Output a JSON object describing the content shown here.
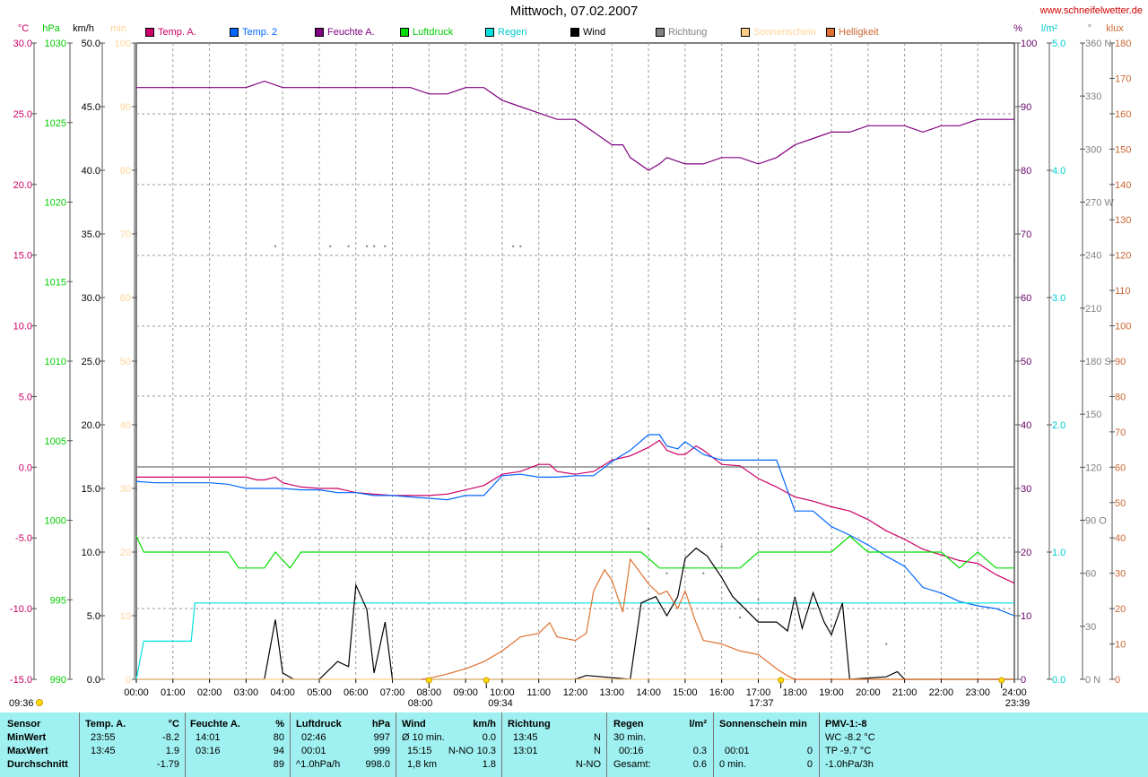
{
  "chart_data": {
    "type": "line",
    "title": "Mittwoch, 07.02.2007",
    "source": "www.schneifelwetter.de",
    "x_ticks": [
      "00:00",
      "01:00",
      "02:00",
      "03:00",
      "04:00",
      "05:00",
      "06:00",
      "07:00",
      "08:00",
      "09:00",
      "10:00",
      "11:00",
      "12:00",
      "13:00",
      "14:00",
      "15:00",
      "16:00",
      "17:00",
      "18:00",
      "19:00",
      "20:00",
      "21:00",
      "22:00",
      "23:00",
      "24:00"
    ],
    "sun_markers": {
      "sunrise": "08:00",
      "sunset": "17:37",
      "moonrise": "09:34",
      "moonset": "23:39",
      "prev_moon": "09:36"
    },
    "axes": [
      {
        "unit": "°C",
        "color": "#cc0066",
        "range": [
          -15,
          30
        ],
        "ticks": [
          "30.0",
          "25.0",
          "20.0",
          "15.0",
          "10.0",
          "5.0",
          "0.0",
          "-5.0",
          "-10.0",
          "-15.0"
        ]
      },
      {
        "unit": "hPa",
        "color": "#00cc00",
        "range": [
          990,
          1030
        ],
        "ticks": [
          "1030",
          "1025",
          "1020",
          "1015",
          "1010",
          "1005",
          "1000",
          "995",
          "990"
        ]
      },
      {
        "unit": "km/h",
        "color": "#000000",
        "range": [
          0,
          50
        ],
        "ticks": [
          "50.0",
          "45.0",
          "40.0",
          "35.0",
          "30.0",
          "25.0",
          "20.0",
          "15.0",
          "10.0",
          "5.0",
          "0.0"
        ]
      },
      {
        "unit": "min",
        "color": "#ffd49a",
        "range": [
          0,
          100
        ],
        "ticks": [
          "100",
          "90",
          "80",
          "70",
          "60",
          "50",
          "40",
          "30",
          "20",
          "10",
          "0"
        ]
      },
      {
        "unit": "%",
        "color": "#660066",
        "range": [
          0,
          100
        ],
        "ticks": [
          "100",
          "90",
          "80",
          "70",
          "60",
          "50",
          "40",
          "30",
          "20",
          "10",
          "0"
        ]
      },
      {
        "unit": "l/m²",
        "color": "#00cccc",
        "range": [
          0,
          5
        ],
        "ticks": [
          "5.0",
          "4.0",
          "3.0",
          "2.0",
          "1.0",
          "0.0"
        ]
      },
      {
        "unit": "°",
        "color": "#808080",
        "range": [
          0,
          360
        ],
        "ticks": [
          "360 N",
          "330",
          "300",
          "270 W",
          "240",
          "210",
          "180 S",
          "150",
          "120",
          "90 O",
          "60",
          "30",
          "0 N"
        ]
      },
      {
        "unit": "klux",
        "color": "#cc6633",
        "range": [
          0,
          180
        ],
        "ticks": [
          "180",
          "170",
          "160",
          "150",
          "140",
          "130",
          "120",
          "110",
          "100",
          "90",
          "80",
          "70",
          "60",
          "50",
          "40",
          "30",
          "20",
          "10",
          "0"
        ]
      }
    ],
    "series": [
      {
        "name": "Temp. A.",
        "color": "#cc0066",
        "axis": "°C",
        "x": [
          0,
          0.5,
          1,
          1.5,
          2,
          2.5,
          3,
          3.3,
          3.5,
          3.8,
          4,
          4.5,
          5,
          5.5,
          6,
          6.5,
          7,
          7.5,
          8,
          8.5,
          9,
          9.5,
          10,
          10.5,
          11,
          11.3,
          11.5,
          12,
          12.5,
          13,
          13.5,
          14,
          14.3,
          14.5,
          14.8,
          15,
          15.3,
          15.5,
          16,
          16.5,
          17,
          17.5,
          18,
          18.5,
          19,
          19.5,
          20,
          20.5,
          21,
          21.5,
          22,
          22.5,
          23,
          23.5,
          24
        ],
        "y": [
          -0.7,
          -0.7,
          -0.7,
          -0.7,
          -0.7,
          -0.7,
          -0.7,
          -0.9,
          -0.9,
          -0.7,
          -1.1,
          -1.4,
          -1.5,
          -1.5,
          -1.8,
          -1.9,
          -2.0,
          -2.0,
          -2.0,
          -1.9,
          -1.6,
          -1.3,
          -0.5,
          -0.3,
          0.2,
          0.2,
          -0.3,
          -0.5,
          -0.3,
          0.5,
          0.8,
          1.4,
          1.9,
          1.2,
          0.9,
          0.9,
          1.5,
          1.2,
          0.2,
          0.1,
          -0.8,
          -1.4,
          -2.1,
          -2.4,
          -2.8,
          -3.1,
          -3.7,
          -4.5,
          -5.1,
          -5.8,
          -6.2,
          -6.6,
          -6.8,
          -7.6,
          -8.2
        ]
      },
      {
        "name": "Temp. 2",
        "color": "#0066ff",
        "axis": "°C",
        "x": [
          0,
          0.5,
          1,
          1.5,
          2,
          2.5,
          3,
          3.5,
          4,
          4.5,
          5,
          5.5,
          6,
          6.5,
          7,
          7.5,
          8,
          8.5,
          9,
          9.5,
          10,
          10.5,
          11,
          11.5,
          12,
          12.5,
          13,
          13.5,
          14,
          14.3,
          14.5,
          14.8,
          15,
          15.5,
          16,
          16.5,
          17,
          17.5,
          18,
          18.5,
          19,
          19.5,
          20,
          20.5,
          21,
          21.5,
          22,
          22.5,
          23,
          23.5,
          24
        ],
        "y": [
          -1.0,
          -1.1,
          -1.1,
          -1.1,
          -1.1,
          -1.2,
          -1.5,
          -1.5,
          -1.5,
          -1.6,
          -1.6,
          -1.8,
          -1.8,
          -2.0,
          -2.0,
          -2.1,
          -2.2,
          -2.3,
          -2.0,
          -2.0,
          -0.6,
          -0.5,
          -0.7,
          -0.7,
          -0.6,
          -0.6,
          0.4,
          1.2,
          2.3,
          2.3,
          1.5,
          1.3,
          1.8,
          0.9,
          0.5,
          0.5,
          0.5,
          0.5,
          -3.1,
          -3.1,
          -4.2,
          -4.8,
          -5.5,
          -6.3,
          -7.0,
          -8.5,
          -8.9,
          -9.5,
          -9.8,
          -10.0,
          -10.5
        ]
      },
      {
        "name": "Feuchte A.",
        "color": "#800080",
        "axis": "%",
        "x": [
          0,
          0.5,
          1,
          1.5,
          2,
          2.5,
          3,
          3.5,
          4,
          4.5,
          5,
          5.5,
          6,
          6.5,
          7,
          7.5,
          8,
          8.5,
          9,
          9.5,
          10,
          10.5,
          11,
          11.5,
          12,
          12.5,
          13,
          13.3,
          13.5,
          14,
          14.3,
          14.5,
          15,
          15.5,
          16,
          16.5,
          17,
          17.5,
          18,
          18.5,
          19,
          19.5,
          20,
          20.5,
          21,
          21.5,
          22,
          22.5,
          23,
          23.5,
          24
        ],
        "y": [
          93,
          93,
          93,
          93,
          93,
          93,
          93,
          94,
          93,
          93,
          93,
          93,
          93,
          93,
          93,
          93,
          92,
          92,
          93,
          93,
          91,
          90,
          89,
          88,
          88,
          86,
          84,
          84,
          82,
          80,
          81,
          82,
          81,
          81,
          82,
          82,
          81,
          82,
          84,
          85,
          86,
          86,
          87,
          87,
          87,
          86,
          87,
          87,
          88,
          88,
          88
        ]
      },
      {
        "name": "Luftdruck",
        "color": "#00dd00",
        "axis": "hPa",
        "x": [
          0,
          0.2,
          2.5,
          2.8,
          3.5,
          3.8,
          4.2,
          4.5,
          5,
          7,
          8,
          9,
          10,
          11,
          12,
          13,
          13.8,
          14.3,
          16.5,
          17,
          17.5,
          18,
          18.5,
          19,
          19.5,
          20,
          20.5,
          21,
          21.5,
          22,
          22.5,
          23,
          23.5,
          24
        ],
        "y": [
          999,
          998,
          998,
          997,
          997,
          998,
          997,
          998,
          998,
          998,
          998,
          998,
          998,
          998,
          998,
          998,
          998,
          997,
          997,
          998,
          998,
          998,
          998,
          998,
          999,
          998,
          998,
          998,
          998,
          998,
          997,
          998,
          997,
          997
        ]
      },
      {
        "name": "Regen",
        "color": "#00e0e0",
        "axis": "l/m²",
        "x": [
          0,
          0.2,
          1.2,
          1.5,
          1.6,
          2,
          4,
          6,
          8,
          10,
          12,
          14,
          16,
          18,
          20,
          22,
          24
        ],
        "y": [
          0,
          0.3,
          0.3,
          0.3,
          0.6,
          0.6,
          0.6,
          0.6,
          0.6,
          0.6,
          0.6,
          0.6,
          0.6,
          0.6,
          0.6,
          0.6,
          0.6
        ]
      },
      {
        "name": "Wind",
        "color": "#000000",
        "axis": "km/h",
        "x": [
          0,
          3.5,
          3.8,
          4.0,
          4.3,
          5,
          5.5,
          5.8,
          6,
          6.3,
          6.5,
          6.8,
          7,
          7.2,
          7.5,
          8,
          12,
          12.3,
          13.5,
          13.8,
          14.2,
          14.5,
          14.8,
          15,
          15.3,
          15.6,
          16,
          16.3,
          17,
          17.5,
          17.8,
          18,
          18.2,
          18.5,
          18.8,
          19,
          19.3,
          19.5,
          20.5,
          20.8,
          21,
          24
        ],
        "y": [
          0,
          0,
          4.7,
          0.5,
          0,
          0,
          1.4,
          1.0,
          7.4,
          5.5,
          0.5,
          4.5,
          0,
          0,
          0,
          0,
          0,
          0.3,
          0,
          6.0,
          6.5,
          5.0,
          6.5,
          9.5,
          10.3,
          9.7,
          8.0,
          6.5,
          4.5,
          4.5,
          3.8,
          6.5,
          4.0,
          6.8,
          4.5,
          3.5,
          6.0,
          0,
          0.2,
          0.6,
          0,
          0
        ]
      },
      {
        "name": "Richtung",
        "color": "#808080",
        "axis": "°",
        "points": [
          [
            3.8,
            245
          ],
          [
            5.3,
            245
          ],
          [
            5.8,
            245
          ],
          [
            6.3,
            245
          ],
          [
            6.5,
            245
          ],
          [
            6.8,
            245
          ],
          [
            10.3,
            245
          ],
          [
            10.5,
            245
          ],
          [
            14.0,
            85
          ],
          [
            14.5,
            60
          ],
          [
            15.5,
            60
          ],
          [
            16.0,
            75
          ],
          [
            16.5,
            35
          ],
          [
            17.0,
            45
          ],
          [
            18.0,
            45
          ],
          [
            18.5,
            40
          ],
          [
            19.0,
            30
          ],
          [
            20.5,
            20
          ]
        ]
      },
      {
        "name": "Sonnenschein",
        "color": "#ffcc88",
        "axis": "min",
        "x": [
          0,
          24
        ],
        "y": [
          0,
          0
        ]
      },
      {
        "name": "Helligkeit",
        "color": "#e07030",
        "axis": "klux",
        "x": [
          7.8,
          8,
          8.5,
          9,
          9.5,
          10,
          10.5,
          11,
          11.3,
          11.5,
          12,
          12.3,
          12.5,
          12.8,
          13,
          13.3,
          13.5,
          14,
          14.3,
          14.5,
          14.8,
          15,
          15.3,
          15.5,
          16,
          16.5,
          17,
          17.5,
          17.8,
          18,
          24
        ],
        "y": [
          0,
          0.3,
          1.5,
          3,
          5,
          8,
          12,
          13,
          16,
          12,
          11,
          13,
          25,
          31,
          28,
          19,
          34,
          27,
          24,
          25,
          20,
          25,
          16,
          11,
          10,
          8,
          7,
          3,
          1,
          0,
          0
        ]
      }
    ]
  },
  "legend": [
    {
      "label": "Temp. A.",
      "color": "#cc0066",
      "text_color": "#cc0066"
    },
    {
      "label": "Temp. 2",
      "color": "#0066ff",
      "text_color": "#0066ff"
    },
    {
      "label": "Feuchte A.",
      "color": "#800080",
      "text_color": "#800080"
    },
    {
      "label": "Luftdruck",
      "color": "#00dd00",
      "text_color": "#00cc00"
    },
    {
      "label": "Regen",
      "color": "#00e0e0",
      "text_color": "#00cccc"
    },
    {
      "label": "Wind",
      "color": "#000000",
      "text_color": "#000000"
    },
    {
      "label": "Richtung",
      "color": "#808080",
      "text_color": "#808080"
    },
    {
      "label": "Sonnenschein",
      "color": "#ffcc88",
      "text_color": "#ffd49a"
    },
    {
      "label": "Helligkeit",
      "color": "#e07030",
      "text_color": "#cc6633"
    }
  ],
  "table": {
    "sensor": {
      "header": "Sensor",
      "rows": [
        "MinWert",
        "MaxWert",
        "Durchschnitt"
      ]
    },
    "temp": {
      "header": "Temp. A.",
      "unit": "°C",
      "rows": [
        [
          "23:55",
          "-8.2"
        ],
        [
          "13:45",
          "1.9"
        ],
        [
          "",
          "-1.79"
        ]
      ]
    },
    "humidity": {
      "header": "Feuchte A.",
      "unit": "%",
      "rows": [
        [
          "14:01",
          "80"
        ],
        [
          "03:16",
          "94"
        ],
        [
          "",
          "89"
        ]
      ]
    },
    "pressure": {
      "header": "Luftdruck",
      "unit": "hPa",
      "rows": [
        [
          "02:46",
          "997"
        ],
        [
          "00:01",
          "999"
        ],
        [
          "^1.0hPa/h",
          "998.0"
        ]
      ]
    },
    "wind": {
      "header": "Wind",
      "unit": "km/h",
      "rows": [
        [
          "Ø 10 min.",
          "",
          "0.0"
        ],
        [
          "15:15",
          "N-NO",
          "10.3"
        ],
        [
          "1,8 km",
          "",
          "1.8"
        ]
      ]
    },
    "direction": {
      "header": "Richtung",
      "rows": [
        [
          "13:45",
          "N"
        ],
        [
          "13:01",
          "N"
        ],
        [
          "",
          "N-NO"
        ]
      ]
    },
    "rain": {
      "header": "Regen",
      "unit": "l/m²",
      "rows": [
        [
          "30 min.",
          ""
        ],
        [
          "00:16",
          "0.3"
        ],
        [
          "Gesamt:",
          "0.6"
        ]
      ]
    },
    "sun": {
      "header": "Sonnenschein min",
      "rows": [
        [
          "",
          ""
        ],
        [
          "00:01",
          "0"
        ],
        [
          "0 min.",
          "0"
        ]
      ]
    },
    "pmv": {
      "header": "PMV-1:-8",
      "rows": [
        "WC -8.2 °C",
        "TP -9.7 °C",
        "-1.0hPa/3h"
      ]
    }
  }
}
